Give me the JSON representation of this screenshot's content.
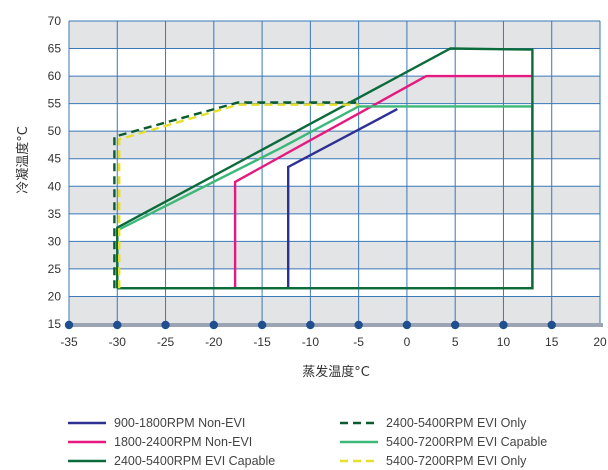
{
  "chart_data": {
    "type": "line",
    "title": "",
    "xlabel": "蒸发温度°C",
    "ylabel": "冷凝温度°C",
    "xlim": [
      -35,
      20
    ],
    "ylim": [
      15,
      70
    ],
    "xticks": [
      "-35",
      "-30",
      "-25",
      "-20",
      "-15",
      "-10",
      "-5",
      "0",
      "5",
      "10",
      "15",
      "20"
    ],
    "yticks": [
      "15",
      "20",
      "25",
      "30",
      "35",
      "40",
      "45",
      "50",
      "55",
      "60",
      "65",
      "70"
    ],
    "grid": true,
    "band_color": "#e3e4e6",
    "grid_color": "#3a78b8",
    "axis_dots": [
      -35,
      -30,
      -25,
      -20,
      -15,
      -10,
      -5,
      0,
      5,
      10,
      15
    ],
    "axis_dot_color": "#1f4f8f",
    "legend_position": "bottom",
    "series": [
      {
        "name": "900-1800RPM Non-EVI",
        "color": "#2e3192",
        "dash": "solid",
        "points": [
          [
            -12.3,
            21.5
          ],
          [
            -12.3,
            43.5
          ],
          [
            -1,
            54
          ]
        ]
      },
      {
        "name": "2400-5400RPM EVI Only",
        "color": "#0b5b2e",
        "dash": "dashed",
        "points": [
          [
            -30.3,
            21.5
          ],
          [
            -30.3,
            49
          ],
          [
            -17.5,
            55.2
          ],
          [
            -5,
            55.2
          ]
        ]
      },
      {
        "name": "1800-2400RPM Non-EVI",
        "color": "#e5197f",
        "dash": "solid",
        "points": [
          [
            -17.8,
            21.5
          ],
          [
            -17.8,
            40.8
          ],
          [
            2,
            60
          ],
          [
            13,
            60
          ]
        ]
      },
      {
        "name": "5400-7200RPM EVI Capable",
        "color": "#3cb878",
        "dash": "solid",
        "points": [
          [
            -30,
            21.5
          ],
          [
            -30,
            32
          ],
          [
            -13,
            47
          ],
          [
            -5,
            54.5
          ],
          [
            13,
            54.5
          ],
          [
            13,
            21.5
          ],
          [
            -30,
            21.5
          ]
        ]
      },
      {
        "name": "2400-5400RPM EVI Capable",
        "color": "#0b6b3a",
        "dash": "solid",
        "points": [
          [
            -30,
            21.5
          ],
          [
            -30,
            32.5
          ],
          [
            4.5,
            65
          ],
          [
            13,
            64.8
          ],
          [
            13,
            21.5
          ],
          [
            -30,
            21.5
          ]
        ]
      },
      {
        "name": "5400-7200RPM EVI Only",
        "color": "#e6e02a",
        "dash": "dashed",
        "points": [
          [
            -29.8,
            21.5
          ],
          [
            -29.8,
            48.5
          ],
          [
            -17.5,
            54.8
          ],
          [
            -5,
            54.8
          ]
        ]
      }
    ]
  }
}
